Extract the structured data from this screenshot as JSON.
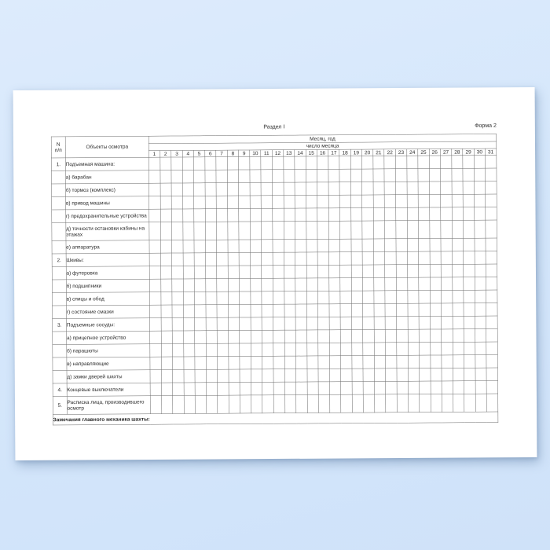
{
  "page": {
    "background_color": "#d5e7fb",
    "paper_color": "#ffffff",
    "grid_line_color": "#686868",
    "text_color": "#2a2a2a"
  },
  "header": {
    "section_title": "Раздел I",
    "form_label": "Форма 2"
  },
  "table": {
    "col_n_header_line1": "N",
    "col_n_header_line2": "п/п",
    "col_objects_header": "Объекты осмотра",
    "month_year_header": "Месяц, год",
    "day_of_month_header": "число месяца",
    "days": [
      "1",
      "2",
      "3",
      "4",
      "5",
      "6",
      "7",
      "8",
      "9",
      "10",
      "11",
      "12",
      "13",
      "14",
      "15",
      "16",
      "17",
      "18",
      "19",
      "20",
      "21",
      "22",
      "23",
      "24",
      "25",
      "26",
      "27",
      "28",
      "29",
      "30",
      "31"
    ],
    "rows": [
      {
        "num": "1.",
        "label": "Подъемная машина:",
        "tall": false
      },
      {
        "num": "",
        "label": "а) барабан",
        "tall": false
      },
      {
        "num": "",
        "label": "б) тормоз (комплекс)",
        "tall": false
      },
      {
        "num": "",
        "label": "в) привод машины",
        "tall": false
      },
      {
        "num": "",
        "label": "г) предохранительные устройства",
        "tall": false
      },
      {
        "num": "",
        "label": "д) точности остановки кабины на этажах",
        "tall": true
      },
      {
        "num": "",
        "label": "е) аппаратура",
        "tall": false
      },
      {
        "num": "2.",
        "label": "Шкивы:",
        "tall": false
      },
      {
        "num": "",
        "label": "а) футеровка",
        "tall": false
      },
      {
        "num": "",
        "label": "б) подшипники",
        "tall": false
      },
      {
        "num": "",
        "label": "в) спицы и обод",
        "tall": false
      },
      {
        "num": "",
        "label": "г) состояние смазки",
        "tall": false
      },
      {
        "num": "3.",
        "label": "Подъемные сосуды:",
        "tall": false
      },
      {
        "num": "",
        "label": "а) прицепное устройство",
        "tall": false
      },
      {
        "num": "",
        "label": "б) парашюты",
        "tall": false
      },
      {
        "num": "",
        "label": "в) направляющие",
        "tall": false
      },
      {
        "num": "",
        "label": "д) замки дверей шахты",
        "tall": false
      },
      {
        "num": "4.",
        "label": "Концевые выключатели",
        "tall": false
      },
      {
        "num": "5.",
        "label": "Расписка лица, производившего осмотр",
        "tall": true
      }
    ],
    "footer_note": "Замечания главного механика шахты:"
  }
}
